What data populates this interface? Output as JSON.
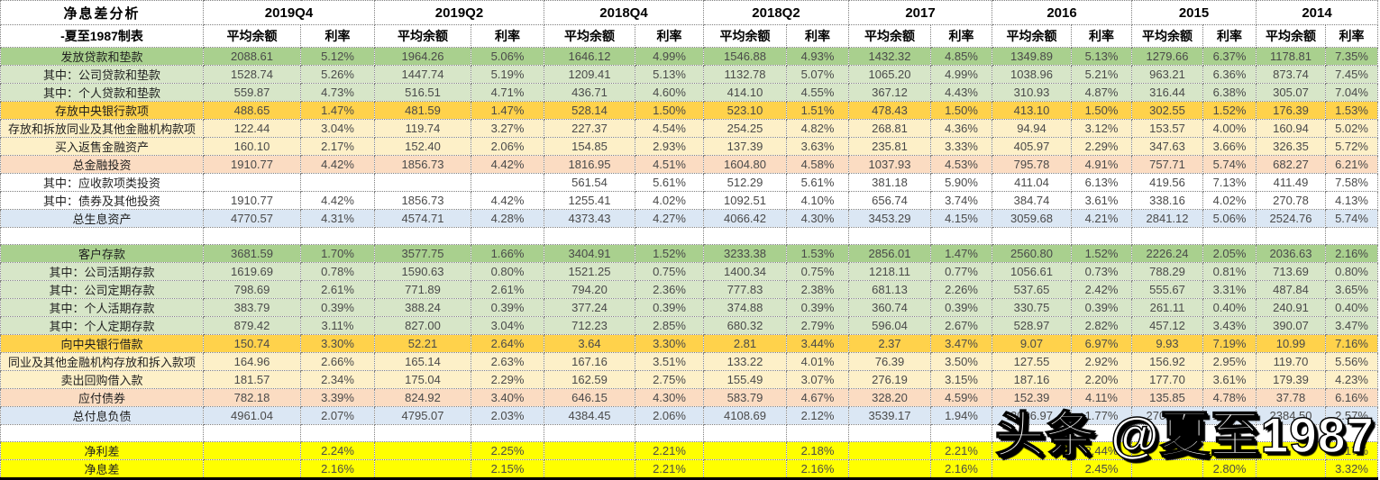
{
  "title": "净息差分析",
  "subtitle": "-夏至1987制表",
  "watermark": "头条 @夏至1987",
  "periods": [
    "2019Q4",
    "2019Q2",
    "2018Q4",
    "2018Q2",
    "2017",
    "2016",
    "2015",
    "2014"
  ],
  "subcols": {
    "balance": "平均余额",
    "rate": "利率"
  },
  "rows": [
    {
      "label": "发放贷款和垫款",
      "style": "green",
      "cells": [
        "2088.61",
        "5.12%",
        "1964.26",
        "5.06%",
        "1646.12",
        "4.99%",
        "1546.88",
        "4.93%",
        "1432.32",
        "4.85%",
        "1349.89",
        "5.13%",
        "1279.66",
        "6.37%",
        "1178.81",
        "7.35%"
      ]
    },
    {
      "label": "其中：公司贷款和垫款",
      "style": "greenlight",
      "cells": [
        "1528.74",
        "5.26%",
        "1447.74",
        "5.19%",
        "1209.41",
        "5.13%",
        "1132.78",
        "5.07%",
        "1065.20",
        "4.99%",
        "1038.96",
        "5.21%",
        "963.21",
        "6.36%",
        "873.74",
        "7.45%"
      ]
    },
    {
      "label": "其中：个人贷款和垫款",
      "style": "greenlight",
      "cells": [
        "559.87",
        "4.73%",
        "516.51",
        "4.71%",
        "436.71",
        "4.60%",
        "414.10",
        "4.55%",
        "367.12",
        "4.43%",
        "310.93",
        "4.87%",
        "316.44",
        "6.38%",
        "305.07",
        "7.04%"
      ]
    },
    {
      "label": "存放中央银行款项",
      "style": "gold",
      "cells": [
        "488.65",
        "1.47%",
        "481.59",
        "1.47%",
        "528.14",
        "1.50%",
        "523.10",
        "1.51%",
        "478.43",
        "1.50%",
        "413.10",
        "1.50%",
        "302.55",
        "1.52%",
        "176.39",
        "1.53%"
      ]
    },
    {
      "label": "存放和拆放同业及其他金融机构款项",
      "style": "paleyellow",
      "cells": [
        "122.44",
        "3.04%",
        "119.74",
        "3.27%",
        "227.37",
        "4.54%",
        "254.25",
        "4.82%",
        "268.81",
        "4.36%",
        "94.94",
        "3.12%",
        "153.57",
        "4.00%",
        "160.94",
        "5.02%"
      ]
    },
    {
      "label": "买入返售金融资产",
      "style": "paleyellow",
      "cells": [
        "160.10",
        "2.17%",
        "152.40",
        "2.06%",
        "154.85",
        "2.93%",
        "137.39",
        "3.63%",
        "235.81",
        "3.33%",
        "405.97",
        "2.29%",
        "347.63",
        "3.66%",
        "326.35",
        "5.72%"
      ]
    },
    {
      "label": "总金融投资",
      "style": "pink",
      "cells": [
        "1910.77",
        "4.42%",
        "1856.73",
        "4.42%",
        "1816.95",
        "4.51%",
        "1604.80",
        "4.58%",
        "1037.93",
        "4.53%",
        "795.78",
        "4.91%",
        "757.71",
        "5.74%",
        "682.27",
        "6.21%"
      ]
    },
    {
      "label": "其中：应收款项类投资",
      "style": "white",
      "cells": [
        "",
        "",
        "",
        "",
        "561.54",
        "5.61%",
        "512.29",
        "5.61%",
        "381.18",
        "5.90%",
        "411.04",
        "6.13%",
        "419.56",
        "7.13%",
        "411.49",
        "7.58%"
      ]
    },
    {
      "label": "其中：债券及其他投资",
      "style": "white",
      "cells": [
        "1910.77",
        "4.42%",
        "1856.73",
        "4.42%",
        "1255.41",
        "4.02%",
        "1092.51",
        "4.10%",
        "656.74",
        "3.74%",
        "384.74",
        "3.61%",
        "338.16",
        "4.02%",
        "270.78",
        "4.13%"
      ]
    },
    {
      "label": "总生息资产",
      "style": "blue",
      "cells": [
        "4770.57",
        "4.31%",
        "4574.71",
        "4.28%",
        "4373.43",
        "4.27%",
        "4066.42",
        "4.30%",
        "3453.29",
        "4.15%",
        "3059.68",
        "4.21%",
        "2841.12",
        "5.06%",
        "2524.76",
        "5.74%"
      ]
    },
    {
      "label": "",
      "style": "spacer",
      "cells": [
        "",
        "",
        "",
        "",
        "",
        "",
        "",
        "",
        "",
        "",
        "",
        "",
        "",
        "",
        "",
        ""
      ]
    },
    {
      "label": "客户存款",
      "style": "green",
      "cells": [
        "3681.59",
        "1.70%",
        "3577.75",
        "1.66%",
        "3404.91",
        "1.52%",
        "3233.38",
        "1.53%",
        "2856.01",
        "1.47%",
        "2560.80",
        "1.52%",
        "2226.24",
        "2.05%",
        "2036.63",
        "2.16%"
      ]
    },
    {
      "label": "其中：公司活期存款",
      "style": "greenlight",
      "cells": [
        "1619.69",
        "0.78%",
        "1590.63",
        "0.80%",
        "1521.25",
        "0.75%",
        "1400.34",
        "0.75%",
        "1218.11",
        "0.77%",
        "1056.61",
        "0.73%",
        "788.29",
        "0.81%",
        "713.69",
        "0.80%"
      ]
    },
    {
      "label": "其中：公司定期存款",
      "style": "greenlight",
      "cells": [
        "798.69",
        "2.61%",
        "771.89",
        "2.61%",
        "794.20",
        "2.36%",
        "777.83",
        "2.38%",
        "681.13",
        "2.26%",
        "537.65",
        "2.42%",
        "555.67",
        "3.31%",
        "487.84",
        "3.65%"
      ]
    },
    {
      "label": "其中：个人活期存款",
      "style": "greenlight",
      "cells": [
        "383.79",
        "0.39%",
        "388.24",
        "0.39%",
        "377.24",
        "0.39%",
        "374.88",
        "0.39%",
        "360.74",
        "0.39%",
        "330.75",
        "0.39%",
        "261.11",
        "0.40%",
        "240.91",
        "0.40%"
      ]
    },
    {
      "label": "其中：个人定期存款",
      "style": "greenlight",
      "cells": [
        "879.42",
        "3.11%",
        "827.00",
        "3.04%",
        "712.23",
        "2.85%",
        "680.32",
        "2.79%",
        "596.04",
        "2.67%",
        "528.97",
        "2.82%",
        "457.12",
        "3.43%",
        "390.07",
        "3.47%"
      ]
    },
    {
      "label": "向中央银行借款",
      "style": "gold",
      "cells": [
        "150.74",
        "3.30%",
        "52.21",
        "2.64%",
        "3.64",
        "3.30%",
        "2.81",
        "3.44%",
        "2.37",
        "3.47%",
        "9.07",
        "6.97%",
        "9.93",
        "7.19%",
        "10.99",
        "7.16%"
      ]
    },
    {
      "label": "同业及其他金融机构存放和拆入款项",
      "style": "paleyellow",
      "cells": [
        "164.96",
        "2.66%",
        "165.14",
        "2.63%",
        "167.16",
        "3.51%",
        "133.22",
        "4.01%",
        "76.39",
        "3.50%",
        "127.55",
        "2.92%",
        "156.92",
        "2.95%",
        "119.70",
        "5.56%"
      ]
    },
    {
      "label": "卖出回购借入款",
      "style": "paleyellow",
      "cells": [
        "181.57",
        "2.34%",
        "175.04",
        "2.29%",
        "162.59",
        "2.75%",
        "155.49",
        "3.07%",
        "276.19",
        "3.15%",
        "187.16",
        "2.20%",
        "177.70",
        "3.61%",
        "179.39",
        "4.23%"
      ]
    },
    {
      "label": "应付债券",
      "style": "pink",
      "cells": [
        "782.18",
        "3.39%",
        "824.92",
        "3.40%",
        "646.15",
        "4.30%",
        "583.79",
        "4.67%",
        "328.20",
        "4.59%",
        "152.39",
        "4.11%",
        "135.85",
        "4.78%",
        "37.78",
        "6.16%"
      ]
    },
    {
      "label": "总付息负债",
      "style": "blue",
      "cells": [
        "4961.04",
        "2.07%",
        "4795.07",
        "2.03%",
        "4384.45",
        "2.06%",
        "4108.69",
        "2.12%",
        "3539.17",
        "1.94%",
        "3036.97",
        "1.77%",
        "2706.63",
        "2.36%",
        "2384.50",
        "2.57%"
      ]
    },
    {
      "label": "",
      "style": "spacer",
      "cells": [
        "",
        "",
        "",
        "",
        "",
        "",
        "",
        "",
        "",
        "",
        "",
        "",
        "",
        "",
        "",
        ""
      ]
    },
    {
      "label": "净利差",
      "style": "yellow",
      "cells": [
        "",
        "2.24%",
        "",
        "2.25%",
        "",
        "2.21%",
        "",
        "2.18%",
        "",
        "2.21%",
        "",
        "2.44%",
        "",
        "",
        "",
        "3.17%"
      ]
    },
    {
      "label": "净息差",
      "style": "yellow",
      "cells": [
        "",
        "2.16%",
        "",
        "2.15%",
        "",
        "2.21%",
        "",
        "2.16%",
        "",
        "2.16%",
        "",
        "2.45%",
        "",
        "2.80%",
        "",
        "3.32%"
      ]
    }
  ],
  "comment_markers": [
    {
      "row": 6,
      "col": 0
    },
    {
      "row": 8,
      "col": 6
    },
    {
      "row": 8,
      "col": 10
    }
  ]
}
